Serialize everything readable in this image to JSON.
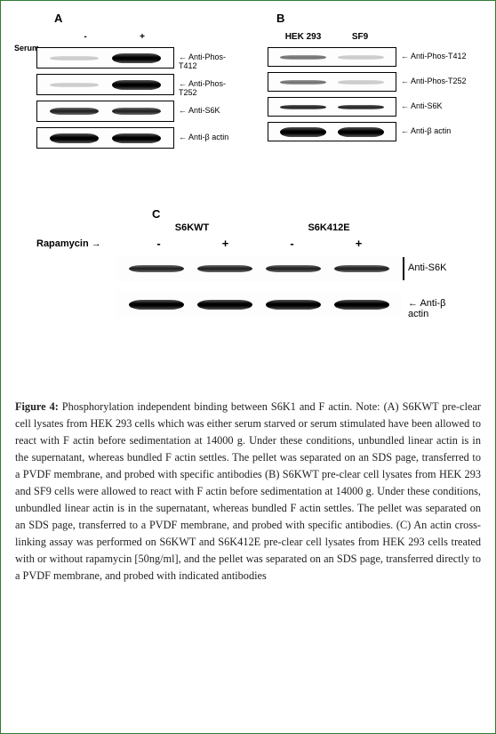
{
  "figure": {
    "number": "Figure 4:",
    "title": "Phosphorylation independent binding between S6K1 and F actin.",
    "note_prefix": "Note:",
    "body": "(A) S6KWT pre-clear cell lysates from HEK 293 cells which was either serum starved or serum stimulated have been allowed to react with F actin before sedimentation at 14000 g. Under these conditions, unbundled linear actin is in the supernatant, whereas bundled F actin settles. The pellet was separated on an SDS page, transferred to a PVDF membrane, and probed with specific antibodies (B) S6KWT pre-clear cell lysates from HEK 293 and SF9 cells were allowed to react with F actin before sedimentation at 14000 g. Under these conditions, unbundled linear actin is in the supernatant, whereas bundled F actin settles. The pellet was separated on an SDS page, transferred to a PVDF membrane, and probed with specific antibodies. (C) An actin cross-linking assay was performed on S6KWT and S6K412E pre-clear cell lysates from HEK 293 cells treated with or without rapamycin [50ng/ml], and the pellet was separated on an SDS page, transferred directly to a PVDF membrane, and probed with indicated antibodies"
  },
  "panelA": {
    "label": "A",
    "rowLabel": "Serum",
    "col1": "-",
    "col2": "+",
    "blots": [
      {
        "label": "Anti-Phos-T412",
        "b1": "faint thin",
        "b2": "heavy"
      },
      {
        "label": "Anti-Phos-T252",
        "b1": "faint thin",
        "b2": "heavy"
      },
      {
        "label": "Anti-S6K",
        "b1": "med",
        "b2": "med"
      },
      {
        "label": "Anti-β actin",
        "b1": "heavy",
        "b2": "heavy"
      }
    ]
  },
  "panelB": {
    "label": "B",
    "col1": "HEK 293",
    "col2": "SF9",
    "blots": [
      {
        "label": "Anti-Phos-T412",
        "b1": "light thin",
        "b2": "faint thin"
      },
      {
        "label": "Anti-Phos-T252",
        "b1": "light thin",
        "b2": "faint thin"
      },
      {
        "label": "Anti-S6K",
        "b1": "med thin",
        "b2": "med thin"
      },
      {
        "label": "Anti-β actin",
        "b1": "heavy",
        "b2": "heavy"
      }
    ]
  },
  "panelC": {
    "label": "C",
    "col1": "S6KWT",
    "col2": "S6K412E",
    "rapLabel": "Rapamycin →",
    "signs": [
      "-",
      "+",
      "-",
      "+"
    ],
    "blots": [
      {
        "label": "Anti-S6K",
        "bands": [
          "med",
          "med",
          "med",
          "med"
        ]
      },
      {
        "label": "Anti-β actin",
        "bands": [
          "heavy",
          "heavy",
          "heavy",
          "heavy"
        ]
      }
    ]
  },
  "colors": {
    "border": "#2e7d32",
    "text": "#222222",
    "bandDark": "#000000",
    "background": "#ffffff"
  }
}
